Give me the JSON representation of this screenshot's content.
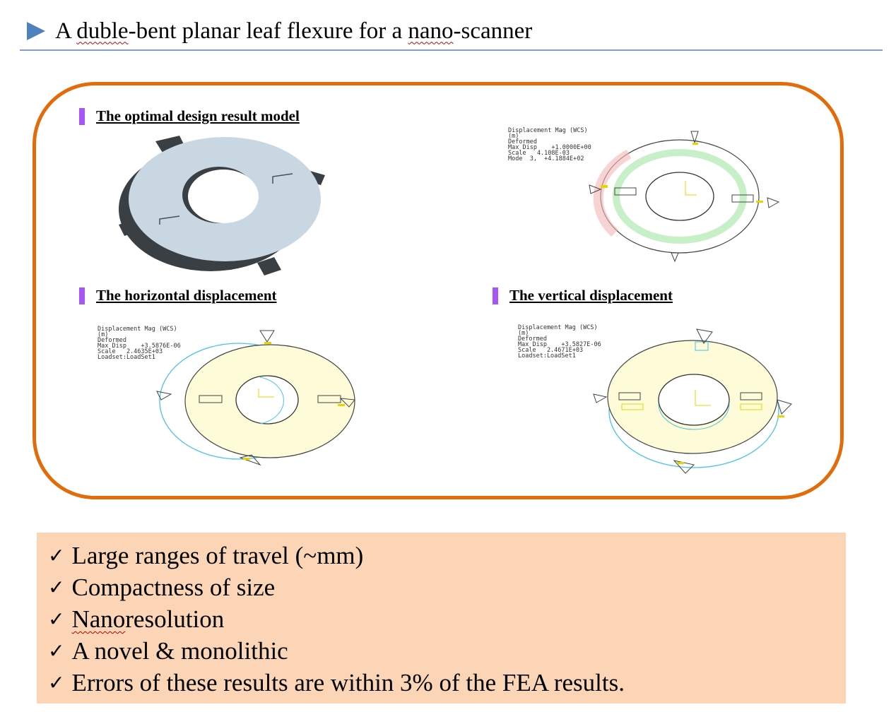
{
  "slide": {
    "title_parts": [
      "A ",
      "duble",
      "-bent planar leaf flexure for a ",
      "nano",
      "-scanner"
    ]
  },
  "panels": {
    "design_label": "The optimal design result model",
    "horizontal_label": "The horizontal displacement",
    "vertical_label": "The vertical displacement"
  },
  "fea_top_right": {
    "lines": [
      "Displacement Mag (WCS)",
      "(m)",
      "Deformed",
      "Max Disp    +1.0000E+00",
      "Scale   4.108E-03",
      "Mode  3,  +4.1884E+02"
    ]
  },
  "fea_horizontal": {
    "lines": [
      "Displacement Mag (WCS)",
      "(m)",
      "Deformed",
      "Max Disp    +3.5876E-06",
      "Scale   2.4635E+03",
      "Loadset:LoadSet1"
    ]
  },
  "fea_vertical": {
    "lines": [
      "Displacement Mag (WCS)",
      "(m)",
      "Deformed",
      "Max Disp    +3.5827E-06",
      "Scale   2.4671E+03",
      "Loadset:LoadSet1"
    ]
  },
  "colors": {
    "title_arrow": "#4f81bd",
    "frame": "#e36c0a",
    "label_bar": "#a855f7",
    "bullet_bg": "#fbd5b5",
    "model_face": "#c9d7e3",
    "model_side": "#3a3f44",
    "fea_fill": "#fdfbd8"
  },
  "bullets": {
    "check_icon": "✓",
    "items": [
      [
        "Large ranges of travel (~mm)"
      ],
      [
        "Compactness of size"
      ],
      [
        "Nano",
        " resolution"
      ],
      [
        "A novel & monolithic"
      ],
      [
        "Errors of these results are within 3% of the FEA results."
      ]
    ]
  }
}
